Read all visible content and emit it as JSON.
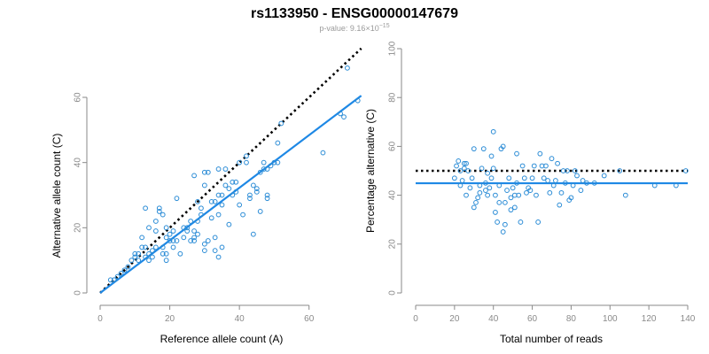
{
  "header": {
    "title": "rs1133950 - ENSG00000147679",
    "pvalue_label": "p-value: 9.16",
    "pvalue_times": "×10",
    "pvalue_exponent": "−15"
  },
  "colors": {
    "points": "#2b8cd6",
    "fit_line": "#1e88e5",
    "reference_line": "#000000",
    "axis": "#8a8a8a"
  },
  "chart_data": [
    {
      "type": "scatter",
      "xlabel": "Reference allele count (A)",
      "ylabel": "Alternative allele count (C)",
      "xlim": [
        0,
        70
      ],
      "ylim": [
        0,
        60
      ],
      "xticks": [
        0,
        20,
        40,
        60
      ],
      "yticks": [
        0,
        20,
        40,
        60
      ],
      "points": [
        [
          3,
          4
        ],
        [
          4,
          4
        ],
        [
          5,
          5
        ],
        [
          6,
          6
        ],
        [
          7,
          7
        ],
        [
          8,
          8
        ],
        [
          9,
          10
        ],
        [
          10,
          12
        ],
        [
          10,
          11
        ],
        [
          11,
          10
        ],
        [
          11,
          12
        ],
        [
          12,
          14
        ],
        [
          12,
          17
        ],
        [
          13,
          26
        ],
        [
          13,
          11
        ],
        [
          13,
          14
        ],
        [
          14,
          20
        ],
        [
          14,
          10
        ],
        [
          14,
          12
        ],
        [
          15,
          11
        ],
        [
          15,
          13
        ],
        [
          16,
          22
        ],
        [
          16,
          19
        ],
        [
          16,
          14
        ],
        [
          17,
          25
        ],
        [
          17,
          26
        ],
        [
          18,
          24
        ],
        [
          18,
          12
        ],
        [
          18,
          14
        ],
        [
          19,
          10
        ],
        [
          19,
          12
        ],
        [
          19,
          17
        ],
        [
          19,
          20
        ],
        [
          20,
          16
        ],
        [
          20,
          18
        ],
        [
          21,
          16
        ],
        [
          21,
          19
        ],
        [
          21,
          14
        ],
        [
          22,
          29
        ],
        [
          22,
          16
        ],
        [
          23,
          12
        ],
        [
          24,
          17
        ],
        [
          24,
          20
        ],
        [
          25,
          19
        ],
        [
          25,
          20
        ],
        [
          26,
          16
        ],
        [
          26,
          22
        ],
        [
          27,
          36
        ],
        [
          27,
          17
        ],
        [
          27,
          19
        ],
        [
          27,
          16
        ],
        [
          28,
          18
        ],
        [
          28,
          22
        ],
        [
          28,
          28
        ],
        [
          29,
          26
        ],
        [
          29,
          24
        ],
        [
          30,
          33
        ],
        [
          30,
          15
        ],
        [
          30,
          13
        ],
        [
          30,
          37
        ],
        [
          31,
          37
        ],
        [
          31,
          16
        ],
        [
          32,
          23
        ],
        [
          32,
          28
        ],
        [
          33,
          17
        ],
        [
          33,
          13
        ],
        [
          33,
          28
        ],
        [
          34,
          11
        ],
        [
          34,
          24
        ],
        [
          34,
          38
        ],
        [
          34,
          30
        ],
        [
          35,
          27
        ],
        [
          35,
          14
        ],
        [
          35,
          30
        ],
        [
          36,
          33
        ],
        [
          36,
          38
        ],
        [
          37,
          21
        ],
        [
          37,
          32
        ],
        [
          38,
          30
        ],
        [
          38,
          34
        ],
        [
          39,
          34
        ],
        [
          39,
          31
        ],
        [
          40,
          27
        ],
        [
          40,
          40
        ],
        [
          41,
          24
        ],
        [
          42,
          40
        ],
        [
          42,
          42
        ],
        [
          43,
          29
        ],
        [
          43,
          30
        ],
        [
          44,
          18
        ],
        [
          44,
          33
        ],
        [
          45,
          31
        ],
        [
          45,
          32
        ],
        [
          46,
          25
        ],
        [
          46,
          37
        ],
        [
          47,
          38
        ],
        [
          47,
          40
        ],
        [
          48,
          29
        ],
        [
          48,
          30
        ],
        [
          48,
          38
        ],
        [
          49,
          39
        ],
        [
          50,
          40
        ],
        [
          51,
          40
        ],
        [
          51,
          46
        ],
        [
          52,
          52
        ],
        [
          64,
          43
        ],
        [
          69,
          55
        ],
        [
          70,
          54
        ],
        [
          71,
          69
        ],
        [
          74,
          59
        ]
      ],
      "fit_line": [
        [
          0,
          0
        ],
        [
          75,
          60.5
        ]
      ],
      "reference_line": [
        [
          0,
          0
        ],
        [
          75,
          75
        ]
      ]
    },
    {
      "type": "scatter",
      "xlabel": "Total number of reads",
      "ylabel": "Percentage alternative (C)",
      "xlim": [
        0,
        140
      ],
      "ylim": [
        0,
        100
      ],
      "xticks": [
        0,
        20,
        40,
        60,
        80,
        100,
        120,
        140
      ],
      "yticks": [
        0,
        20,
        40,
        60,
        80,
        100
      ],
      "points": [
        [
          20,
          47
        ],
        [
          21,
          52
        ],
        [
          22,
          54
        ],
        [
          23,
          50
        ],
        [
          23,
          44
        ],
        [
          24,
          46
        ],
        [
          25,
          51
        ],
        [
          25,
          53
        ],
        [
          26,
          40
        ],
        [
          26,
          53
        ],
        [
          27,
          50
        ],
        [
          28,
          43
        ],
        [
          29,
          47
        ],
        [
          30,
          59
        ],
        [
          30,
          35
        ],
        [
          31,
          37
        ],
        [
          32,
          39
        ],
        [
          33,
          41
        ],
        [
          33,
          44
        ],
        [
          34,
          51
        ],
        [
          35,
          59
        ],
        [
          36,
          45
        ],
        [
          36,
          42
        ],
        [
          37,
          40
        ],
        [
          37,
          49
        ],
        [
          38,
          43
        ],
        [
          39,
          47
        ],
        [
          39,
          56
        ],
        [
          40,
          66
        ],
        [
          40,
          51
        ],
        [
          41,
          40
        ],
        [
          41,
          33
        ],
        [
          42,
          29
        ],
        [
          43,
          37
        ],
        [
          43,
          44
        ],
        [
          44,
          59
        ],
        [
          45,
          25
        ],
        [
          45,
          60
        ],
        [
          46,
          28
        ],
        [
          46,
          37
        ],
        [
          47,
          42
        ],
        [
          48,
          47
        ],
        [
          49,
          34
        ],
        [
          49,
          39
        ],
        [
          50,
          43
        ],
        [
          51,
          35
        ],
        [
          51,
          40
        ],
        [
          52,
          57
        ],
        [
          52,
          45
        ],
        [
          53,
          40
        ],
        [
          54,
          29
        ],
        [
          55,
          52
        ],
        [
          56,
          47
        ],
        [
          57,
          41
        ],
        [
          58,
          43
        ],
        [
          59,
          42
        ],
        [
          60,
          47
        ],
        [
          61,
          52
        ],
        [
          62,
          40
        ],
        [
          63,
          29
        ],
        [
          64,
          57
        ],
        [
          65,
          52
        ],
        [
          66,
          47
        ],
        [
          67,
          52
        ],
        [
          68,
          46
        ],
        [
          69,
          41
        ],
        [
          70,
          55
        ],
        [
          71,
          44
        ],
        [
          72,
          46
        ],
        [
          73,
          53
        ],
        [
          74,
          36
        ],
        [
          75,
          41
        ],
        [
          76,
          50
        ],
        [
          77,
          45
        ],
        [
          78,
          50
        ],
        [
          79,
          38
        ],
        [
          80,
          39
        ],
        [
          81,
          44
        ],
        [
          82,
          50
        ],
        [
          83,
          48
        ],
        [
          85,
          42
        ],
        [
          86,
          46
        ],
        [
          88,
          45
        ],
        [
          92,
          45
        ],
        [
          97,
          48
        ],
        [
          105,
          50
        ],
        [
          108,
          40
        ],
        [
          123,
          44
        ],
        [
          134,
          44
        ],
        [
          139,
          50
        ]
      ],
      "fit_line": [
        [
          0,
          44.9
        ],
        [
          140,
          44.9
        ]
      ],
      "reference_line": [
        [
          0,
          50
        ],
        [
          140,
          50
        ]
      ]
    }
  ]
}
